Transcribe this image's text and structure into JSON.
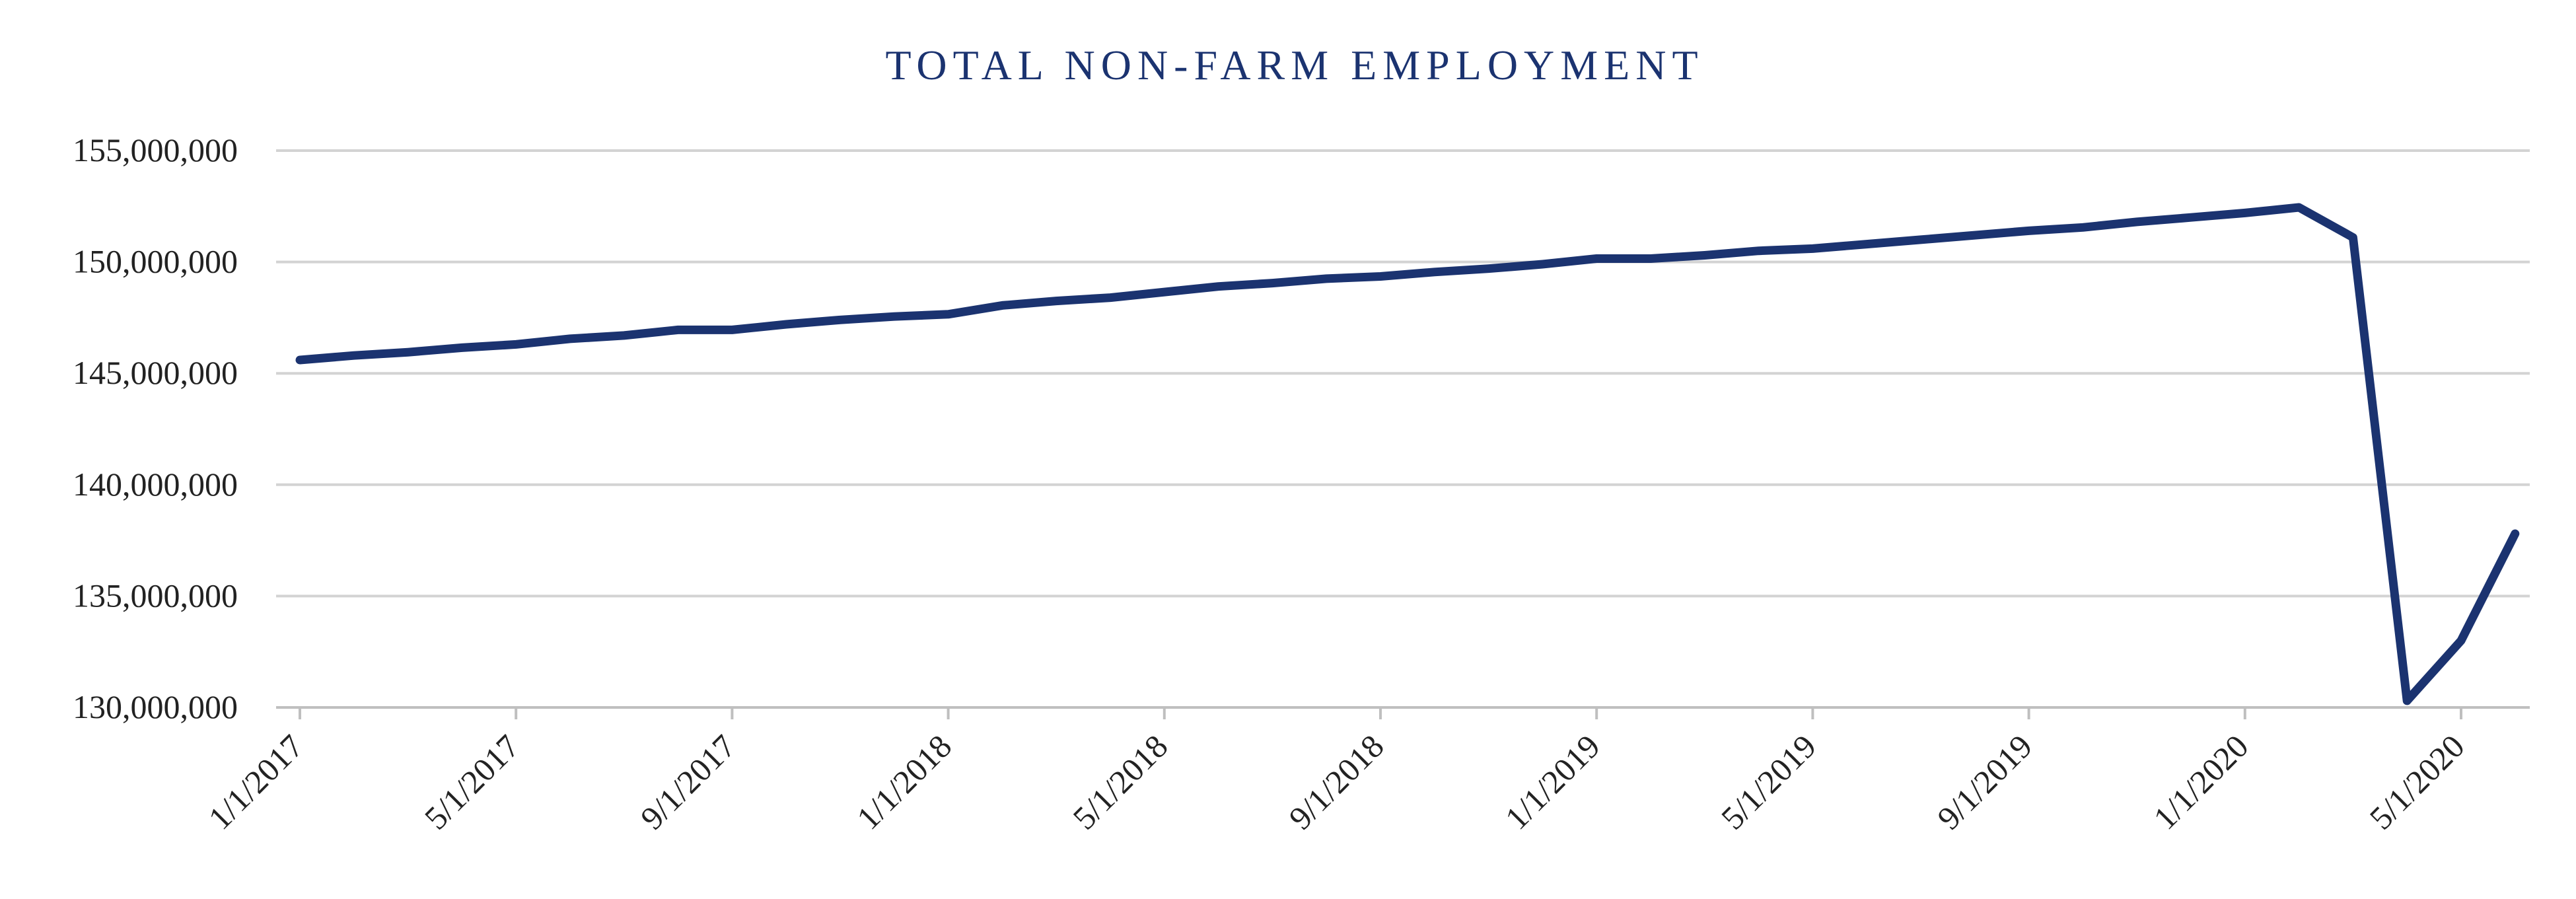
{
  "chart_data": {
    "type": "line",
    "title": "TOTAL NON-FARM EMPLOYMENT",
    "xlabel": "",
    "ylabel": "",
    "ylim": [
      130000000,
      155000000
    ],
    "y_ticks": [
      {
        "value": 130000000,
        "label": "130,000,000"
      },
      {
        "value": 135000000,
        "label": "135,000,000"
      },
      {
        "value": 140000000,
        "label": "140,000,000"
      },
      {
        "value": 145000000,
        "label": "145,000,000"
      },
      {
        "value": 150000000,
        "label": "150,000,000"
      },
      {
        "value": 155000000,
        "label": "155,000,000"
      }
    ],
    "x_tick_labels": [
      "1/1/2017",
      "5/1/2017",
      "9/1/2017",
      "1/1/2018",
      "5/1/2018",
      "9/1/2018",
      "1/1/2019",
      "5/1/2019",
      "9/1/2019",
      "1/1/2020",
      "5/1/2020"
    ],
    "grid": true,
    "legend": "none",
    "colors": {
      "line": "#1b3370",
      "grid": "#d3d3d3",
      "axis": "#bfbfbf",
      "title": "#1b3370",
      "text": "#222222"
    },
    "series": [
      {
        "x": [
          "1/1/2017",
          "2/1/2017",
          "3/1/2017",
          "4/1/2017",
          "5/1/2017",
          "6/1/2017",
          "7/1/2017",
          "8/1/2017",
          "9/1/2017",
          "10/1/2017",
          "11/1/2017",
          "12/1/2017",
          "1/1/2018",
          "2/1/2018",
          "3/1/2018",
          "4/1/2018",
          "5/1/2018",
          "6/1/2018",
          "7/1/2018",
          "8/1/2018",
          "9/1/2018",
          "10/1/2018",
          "11/1/2018",
          "12/1/2018",
          "1/1/2019",
          "2/1/2019",
          "3/1/2019",
          "4/1/2019",
          "5/1/2019",
          "6/1/2019",
          "7/1/2019",
          "8/1/2019",
          "9/1/2019",
          "10/1/2019",
          "11/1/2019",
          "12/1/2019",
          "1/1/2020",
          "2/1/2020",
          "3/1/2020",
          "4/1/2020",
          "5/1/2020",
          "6/1/2020"
        ],
        "values": [
          145600000,
          145800000,
          145950000,
          146150000,
          146300000,
          146550000,
          146700000,
          146950000,
          146950000,
          147200000,
          147400000,
          147550000,
          147650000,
          148050000,
          148250000,
          148400000,
          148650000,
          148900000,
          149050000,
          149250000,
          149350000,
          149550000,
          149700000,
          149900000,
          150150000,
          150150000,
          150300000,
          150500000,
          150600000,
          150800000,
          151000000,
          151200000,
          151400000,
          151550000,
          151800000,
          152000000,
          152200000,
          152450000,
          151100000,
          130300000,
          133000000,
          137800000
        ]
      }
    ]
  }
}
